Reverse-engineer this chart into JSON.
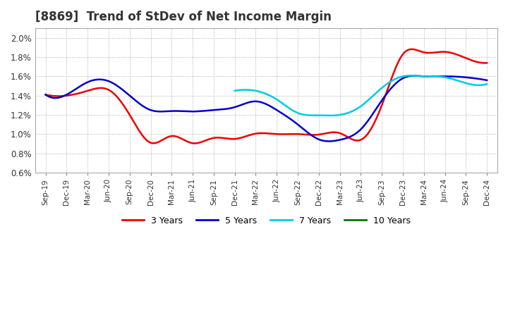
{
  "title": "[8869]  Trend of StDev of Net Income Margin",
  "background_color": "#ffffff",
  "plot_bg_color": "#ffffff",
  "grid_color": "#aaaaaa",
  "ylim": [
    0.006,
    0.021
  ],
  "yticks": [
    0.006,
    0.008,
    0.01,
    0.012,
    0.014,
    0.016,
    0.018,
    0.02
  ],
  "x_tick_labels": [
    "Sep-19",
    "Dec-19",
    "Mar-20",
    "Jun-20",
    "Sep-20",
    "Dec-20",
    "Mar-21",
    "Jun-21",
    "Sep-21",
    "Dec-21",
    "Mar-22",
    "Jun-22",
    "Sep-22",
    "Dec-22",
    "Mar-23",
    "Jun-23",
    "Sep-23",
    "Dec-23",
    "Mar-24",
    "Jun-24",
    "Sep-24",
    "Dec-24"
  ],
  "series": {
    "3 Years": {
      "color": "#ee0000",
      "x": [
        0,
        1,
        2,
        3,
        4,
        5,
        6,
        7,
        8,
        9,
        10,
        11,
        12,
        13,
        14,
        15,
        16,
        17,
        18,
        19,
        20,
        21
      ],
      "values": [
        0.0141,
        0.014,
        0.0145,
        0.0146,
        0.012,
        0.0091,
        0.0098,
        0.00905,
        0.0096,
        0.0095,
        0.01005,
        0.01,
        0.01,
        0.00995,
        0.0101,
        0.0094,
        0.013,
        0.0183,
        0.0185,
        0.01855,
        0.0179,
        0.0174
      ]
    },
    "5 Years": {
      "color": "#0000cc",
      "x": [
        0,
        1,
        2,
        3,
        4,
        5,
        6,
        7,
        8,
        9,
        10,
        11,
        12,
        13,
        14,
        15,
        16,
        17,
        18,
        19,
        20,
        21
      ],
      "values": [
        0.0141,
        0.0141,
        0.0154,
        0.0155,
        0.014,
        0.0125,
        0.0124,
        0.01235,
        0.0125,
        0.0128,
        0.0134,
        0.0125,
        0.011,
        0.00945,
        0.0094,
        0.0105,
        0.0135,
        0.0158,
        0.016,
        0.016,
        0.0159,
        0.0156
      ]
    },
    "7 Years": {
      "color": "#00ccdd",
      "x": [
        9,
        10,
        11,
        12,
        13,
        14,
        15,
        16,
        17,
        18,
        19,
        20,
        21
      ],
      "values": [
        0.0145,
        0.0145,
        0.0136,
        0.0122,
        0.01195,
        0.012,
        0.0129,
        0.0148,
        0.016,
        0.016,
        0.0159,
        0.0153,
        0.0152
      ]
    },
    "10 Years": {
      "color": "#007700",
      "x": [],
      "values": []
    }
  },
  "legend_labels": [
    "3 Years",
    "5 Years",
    "7 Years",
    "10 Years"
  ],
  "legend_colors": [
    "#ee0000",
    "#0000cc",
    "#00ccdd",
    "#007700"
  ]
}
